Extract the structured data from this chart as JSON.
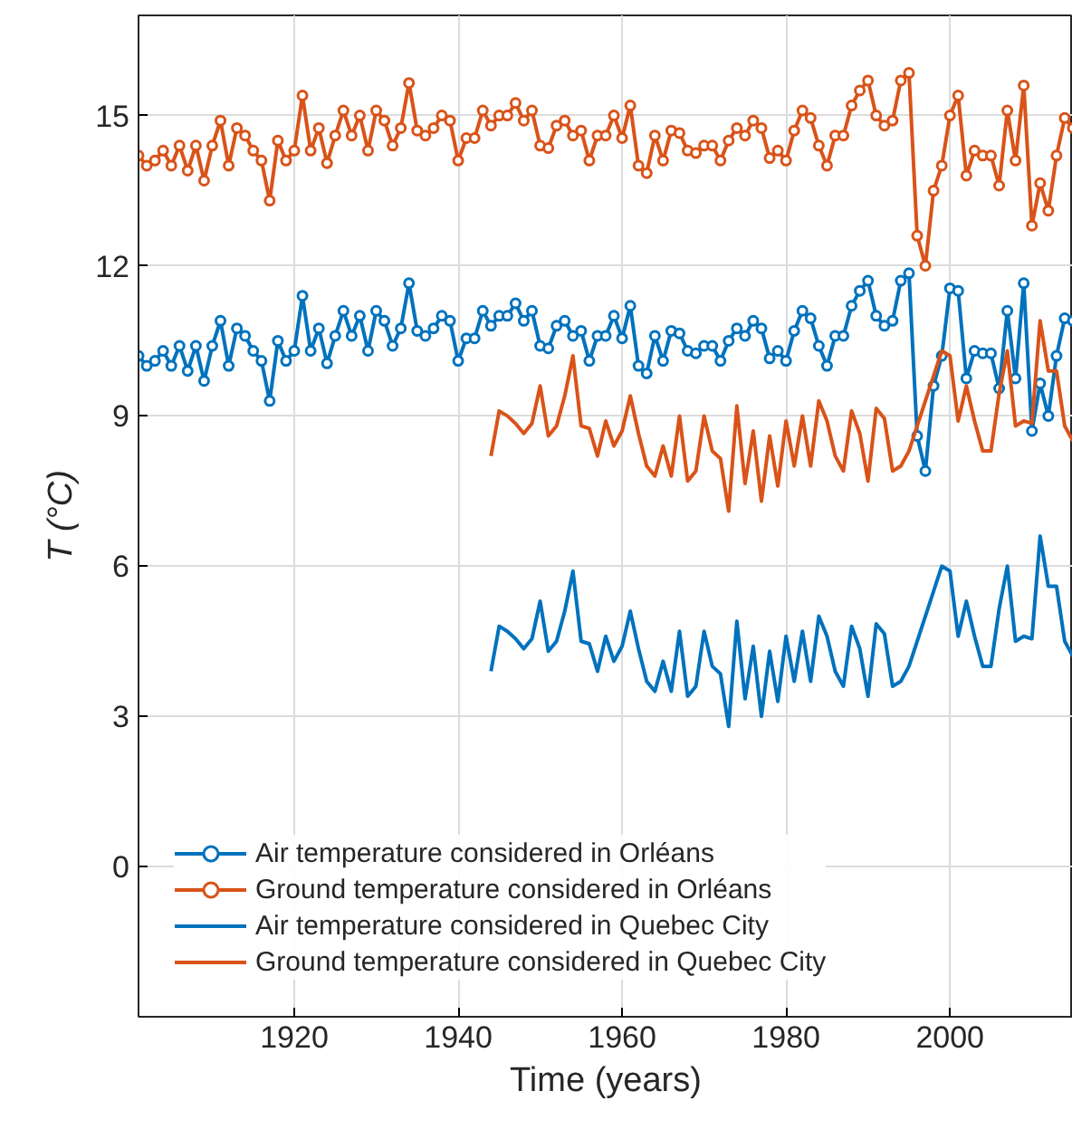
{
  "chart_data": {
    "type": "line",
    "xlabel": "Time (years)",
    "ylabel": "T (°C)",
    "x": [
      1901,
      1902,
      1903,
      1904,
      1905,
      1906,
      1907,
      1908,
      1909,
      1910,
      1911,
      1912,
      1913,
      1914,
      1915,
      1916,
      1917,
      1918,
      1919,
      1920,
      1921,
      1922,
      1923,
      1924,
      1925,
      1926,
      1927,
      1928,
      1929,
      1930,
      1931,
      1932,
      1933,
      1934,
      1935,
      1936,
      1937,
      1938,
      1939,
      1940,
      1941,
      1942,
      1943,
      1944,
      1945,
      1946,
      1947,
      1948,
      1949,
      1950,
      1951,
      1952,
      1953,
      1954,
      1955,
      1956,
      1957,
      1958,
      1959,
      1960,
      1961,
      1962,
      1963,
      1964,
      1965,
      1966,
      1967,
      1968,
      1969,
      1970,
      1971,
      1972,
      1973,
      1974,
      1975,
      1976,
      1977,
      1978,
      1979,
      1980,
      1981,
      1982,
      1983,
      1984,
      1985,
      1986,
      1987,
      1988,
      1989,
      1990,
      1991,
      1992,
      1993,
      1994,
      1995,
      1996,
      1997,
      1998,
      1999,
      2000,
      2001,
      2002,
      2003,
      2004,
      2005,
      2006,
      2007,
      2008,
      2009,
      2010,
      2011,
      2012,
      2013,
      2014,
      2015
    ],
    "series": [
      {
        "name": "Air temperature considered in Orléans",
        "color": "#0072bd",
        "marker": "circle",
        "values": [
          10.2,
          10.0,
          10.1,
          10.3,
          10.0,
          10.4,
          9.9,
          10.4,
          9.7,
          10.4,
          10.9,
          10.0,
          10.75,
          10.6,
          10.3,
          10.1,
          9.3,
          10.5,
          10.1,
          10.3,
          11.4,
          10.3,
          10.75,
          10.05,
          10.6,
          11.1,
          10.6,
          11.0,
          10.3,
          11.1,
          10.9,
          10.4,
          10.75,
          11.65,
          10.7,
          10.6,
          10.75,
          11.0,
          10.9,
          10.1,
          10.55,
          10.55,
          11.1,
          10.8,
          11.0,
          11.0,
          11.25,
          10.9,
          11.1,
          10.4,
          10.35,
          10.8,
          10.9,
          10.6,
          10.7,
          10.1,
          10.6,
          10.6,
          11.0,
          10.55,
          11.2,
          10.0,
          9.85,
          10.6,
          10.1,
          10.7,
          10.65,
          10.3,
          10.25,
          10.4,
          10.4,
          10.1,
          10.5,
          10.75,
          10.6,
          10.9,
          10.75,
          10.15,
          10.3,
          10.1,
          10.7,
          11.1,
          10.95,
          10.4,
          10.0,
          10.6,
          10.6,
          11.2,
          11.5,
          11.7,
          11.0,
          10.8,
          10.9,
          11.7,
          11.85,
          8.6,
          7.9,
          9.6,
          10.2,
          11.55,
          11.5,
          9.75,
          10.3,
          10.25,
          10.25,
          9.55,
          11.1,
          9.75,
          11.65,
          8.7,
          9.65,
          9.0,
          10.2,
          10.95,
          10.9
        ]
      },
      {
        "name": "Ground temperature considered in Orléans",
        "color": "#d95319",
        "marker": "circle",
        "values": [
          14.2,
          14.0,
          14.1,
          14.3,
          14.0,
          14.4,
          13.9,
          14.4,
          13.7,
          14.4,
          14.9,
          14.0,
          14.75,
          14.6,
          14.3,
          14.1,
          13.3,
          14.5,
          14.1,
          14.3,
          15.4,
          14.3,
          14.75,
          14.05,
          14.6,
          15.1,
          14.6,
          15.0,
          14.3,
          15.1,
          14.9,
          14.4,
          14.75,
          15.65,
          14.7,
          14.6,
          14.75,
          15.0,
          14.9,
          14.1,
          14.55,
          14.55,
          15.1,
          14.8,
          15.0,
          15.0,
          15.25,
          14.9,
          15.1,
          14.4,
          14.35,
          14.8,
          14.9,
          14.6,
          14.7,
          14.1,
          14.6,
          14.6,
          15.0,
          14.55,
          15.2,
          14.0,
          13.85,
          14.6,
          14.1,
          14.7,
          14.65,
          14.3,
          14.25,
          14.4,
          14.4,
          14.1,
          14.5,
          14.75,
          14.6,
          14.9,
          14.75,
          14.15,
          14.3,
          14.1,
          14.7,
          15.1,
          14.95,
          14.4,
          14.0,
          14.6,
          14.6,
          15.2,
          15.5,
          15.7,
          15.0,
          14.8,
          14.9,
          15.7,
          15.85,
          12.6,
          12.0,
          13.5,
          14.0,
          15.0,
          15.4,
          13.8,
          14.3,
          14.2,
          14.2,
          13.6,
          15.1,
          14.1,
          15.6,
          12.8,
          13.65,
          13.1,
          14.2,
          14.95,
          14.75
        ]
      },
      {
        "name": "Air temperature considered in Quebec City",
        "color": "#0072bd",
        "marker": "none",
        "x": [
          1944,
          1945,
          1946,
          1947,
          1948,
          1949,
          1950,
          1951,
          1952,
          1953,
          1954,
          1955,
          1956,
          1957,
          1958,
          1959,
          1960,
          1961,
          1962,
          1963,
          1964,
          1965,
          1966,
          1967,
          1968,
          1969,
          1970,
          1971,
          1972,
          1973,
          1974,
          1975,
          1976,
          1977,
          1978,
          1979,
          1980,
          1981,
          1982,
          1983,
          1984,
          1985,
          1986,
          1987,
          1988,
          1989,
          1990,
          1991,
          1992,
          1993,
          1994,
          1995,
          1999,
          2000,
          2001,
          2002,
          2003,
          2004,
          2005,
          2006,
          2007,
          2008,
          2009,
          2010,
          2011,
          2012,
          2013,
          2014,
          2015
        ],
        "values": [
          3.9,
          4.8,
          4.7,
          4.55,
          4.35,
          4.55,
          5.3,
          4.3,
          4.5,
          5.1,
          5.9,
          4.5,
          4.45,
          3.9,
          4.6,
          4.1,
          4.4,
          5.1,
          4.35,
          3.7,
          3.5,
          4.1,
          3.5,
          4.7,
          3.4,
          3.6,
          4.7,
          4.0,
          3.85,
          2.8,
          4.9,
          3.35,
          4.4,
          3.0,
          4.3,
          3.3,
          4.6,
          3.7,
          4.7,
          3.7,
          5.0,
          4.6,
          3.9,
          3.6,
          4.8,
          4.35,
          3.4,
          4.85,
          4.65,
          3.6,
          3.7,
          4.0,
          6.0,
          5.9,
          4.6,
          5.3,
          4.6,
          4.0,
          4.0,
          5.15,
          6.0,
          4.5,
          4.6,
          4.55,
          6.6,
          5.6,
          5.6,
          4.5,
          4.2
        ]
      },
      {
        "name": "Ground temperature considered in Quebec City",
        "color": "#d95319",
        "marker": "none",
        "x": [
          1944,
          1945,
          1946,
          1947,
          1948,
          1949,
          1950,
          1951,
          1952,
          1953,
          1954,
          1955,
          1956,
          1957,
          1958,
          1959,
          1960,
          1961,
          1962,
          1963,
          1964,
          1965,
          1966,
          1967,
          1968,
          1969,
          1970,
          1971,
          1972,
          1973,
          1974,
          1975,
          1976,
          1977,
          1978,
          1979,
          1980,
          1981,
          1982,
          1983,
          1984,
          1985,
          1986,
          1987,
          1988,
          1989,
          1990,
          1991,
          1992,
          1993,
          1994,
          1995,
          1999,
          2000,
          2001,
          2002,
          2003,
          2004,
          2005,
          2006,
          2007,
          2008,
          2009,
          2010,
          2011,
          2012,
          2013,
          2014,
          2015
        ],
        "values": [
          8.2,
          9.1,
          9.0,
          8.85,
          8.65,
          8.85,
          9.6,
          8.6,
          8.8,
          9.4,
          10.2,
          8.8,
          8.75,
          8.2,
          8.9,
          8.4,
          8.7,
          9.4,
          8.65,
          8.0,
          7.8,
          8.4,
          7.8,
          9.0,
          7.7,
          7.9,
          9.0,
          8.3,
          8.15,
          7.1,
          9.2,
          7.65,
          8.7,
          7.3,
          8.6,
          7.6,
          8.9,
          8.0,
          9.0,
          8.0,
          9.3,
          8.9,
          8.2,
          7.9,
          9.1,
          8.65,
          7.7,
          9.15,
          8.95,
          7.9,
          8.0,
          8.3,
          10.3,
          10.2,
          8.9,
          9.6,
          8.9,
          8.3,
          8.3,
          9.45,
          10.3,
          8.8,
          8.9,
          8.85,
          10.9,
          9.9,
          9.9,
          8.8,
          8.5
        ]
      }
    ],
    "xlim": [
      1901,
      2015
    ],
    "xticks": [
      1920,
      1940,
      1960,
      1980,
      2000
    ],
    "ylim": [
      -3,
      17
    ],
    "yticks": [
      0,
      3,
      6,
      9,
      12,
      15
    ],
    "grid": true,
    "legend": "bottom left",
    "line_style": "solid"
  }
}
